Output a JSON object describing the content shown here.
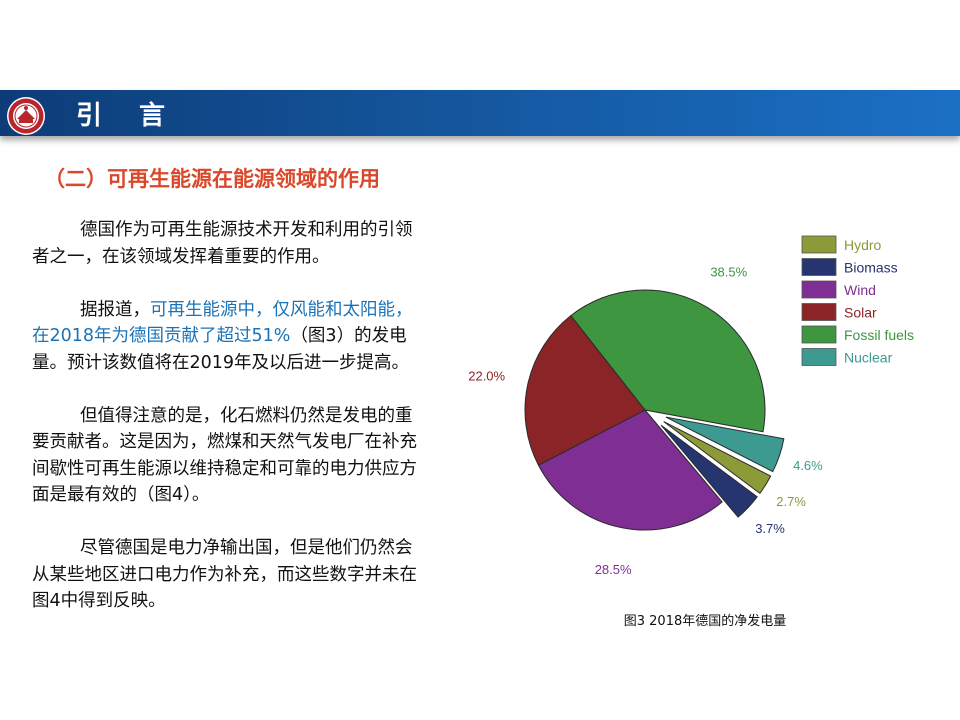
{
  "header": {
    "title": "引 言"
  },
  "section": {
    "heading": "（二）可再生能源在能源领域的作用"
  },
  "paragraphs": [
    {
      "parts": [
        {
          "text": "德国作为可再生能源技术开发和利用的引领者之一，在该领域发挥着重要的作用。",
          "highlight": false
        }
      ]
    },
    {
      "parts": [
        {
          "text": "据报道，",
          "highlight": false
        },
        {
          "text": "可再生能源中，仅风能和太阳能，在2018年为德国贡献了超过51%",
          "highlight": true
        },
        {
          "text": "（图3）的发电量。预计该数值将在2019年及以后进一步提高。",
          "highlight": false
        }
      ]
    },
    {
      "parts": [
        {
          "text": "但值得注意的是，化石燃料仍然是发电的重要贡献者。这是因为，燃煤和天然气发电厂在补充间歇性可再生能源以维持稳定和可靠的电力供应方面是最有效的（图4）。",
          "highlight": false
        }
      ]
    },
    {
      "parts": [
        {
          "text": "尽管德国是电力净输出国，但是他们仍然会从某些地区进口电力作为补充，而这些数字并未在图4中得到反映。",
          "highlight": false
        }
      ]
    }
  ],
  "chart_data": {
    "type": "pie",
    "title": "",
    "legend_position": "top-right",
    "slices": [
      {
        "name": "Hydro",
        "value": 2.7,
        "label": "2.7%",
        "color": "#8c9a37",
        "exploded": true
      },
      {
        "name": "Biomass",
        "value": 3.7,
        "label": "3.7%",
        "color": "#263570",
        "exploded": true
      },
      {
        "name": "Wind",
        "value": 28.5,
        "label": "28.5%",
        "color": "#7f2e94",
        "exploded": false
      },
      {
        "name": "Solar",
        "value": 22.0,
        "label": "22.0%",
        "color": "#8b2427",
        "exploded": false
      },
      {
        "name": "Fossil fuels",
        "value": 38.5,
        "label": "38.5%",
        "color": "#3f9641",
        "exploded": false
      },
      {
        "name": "Nuclear",
        "value": 4.6,
        "label": "4.6%",
        "color": "#3c9a91",
        "exploded": true
      }
    ]
  },
  "caption": "图3 2018年德国的净发电量"
}
